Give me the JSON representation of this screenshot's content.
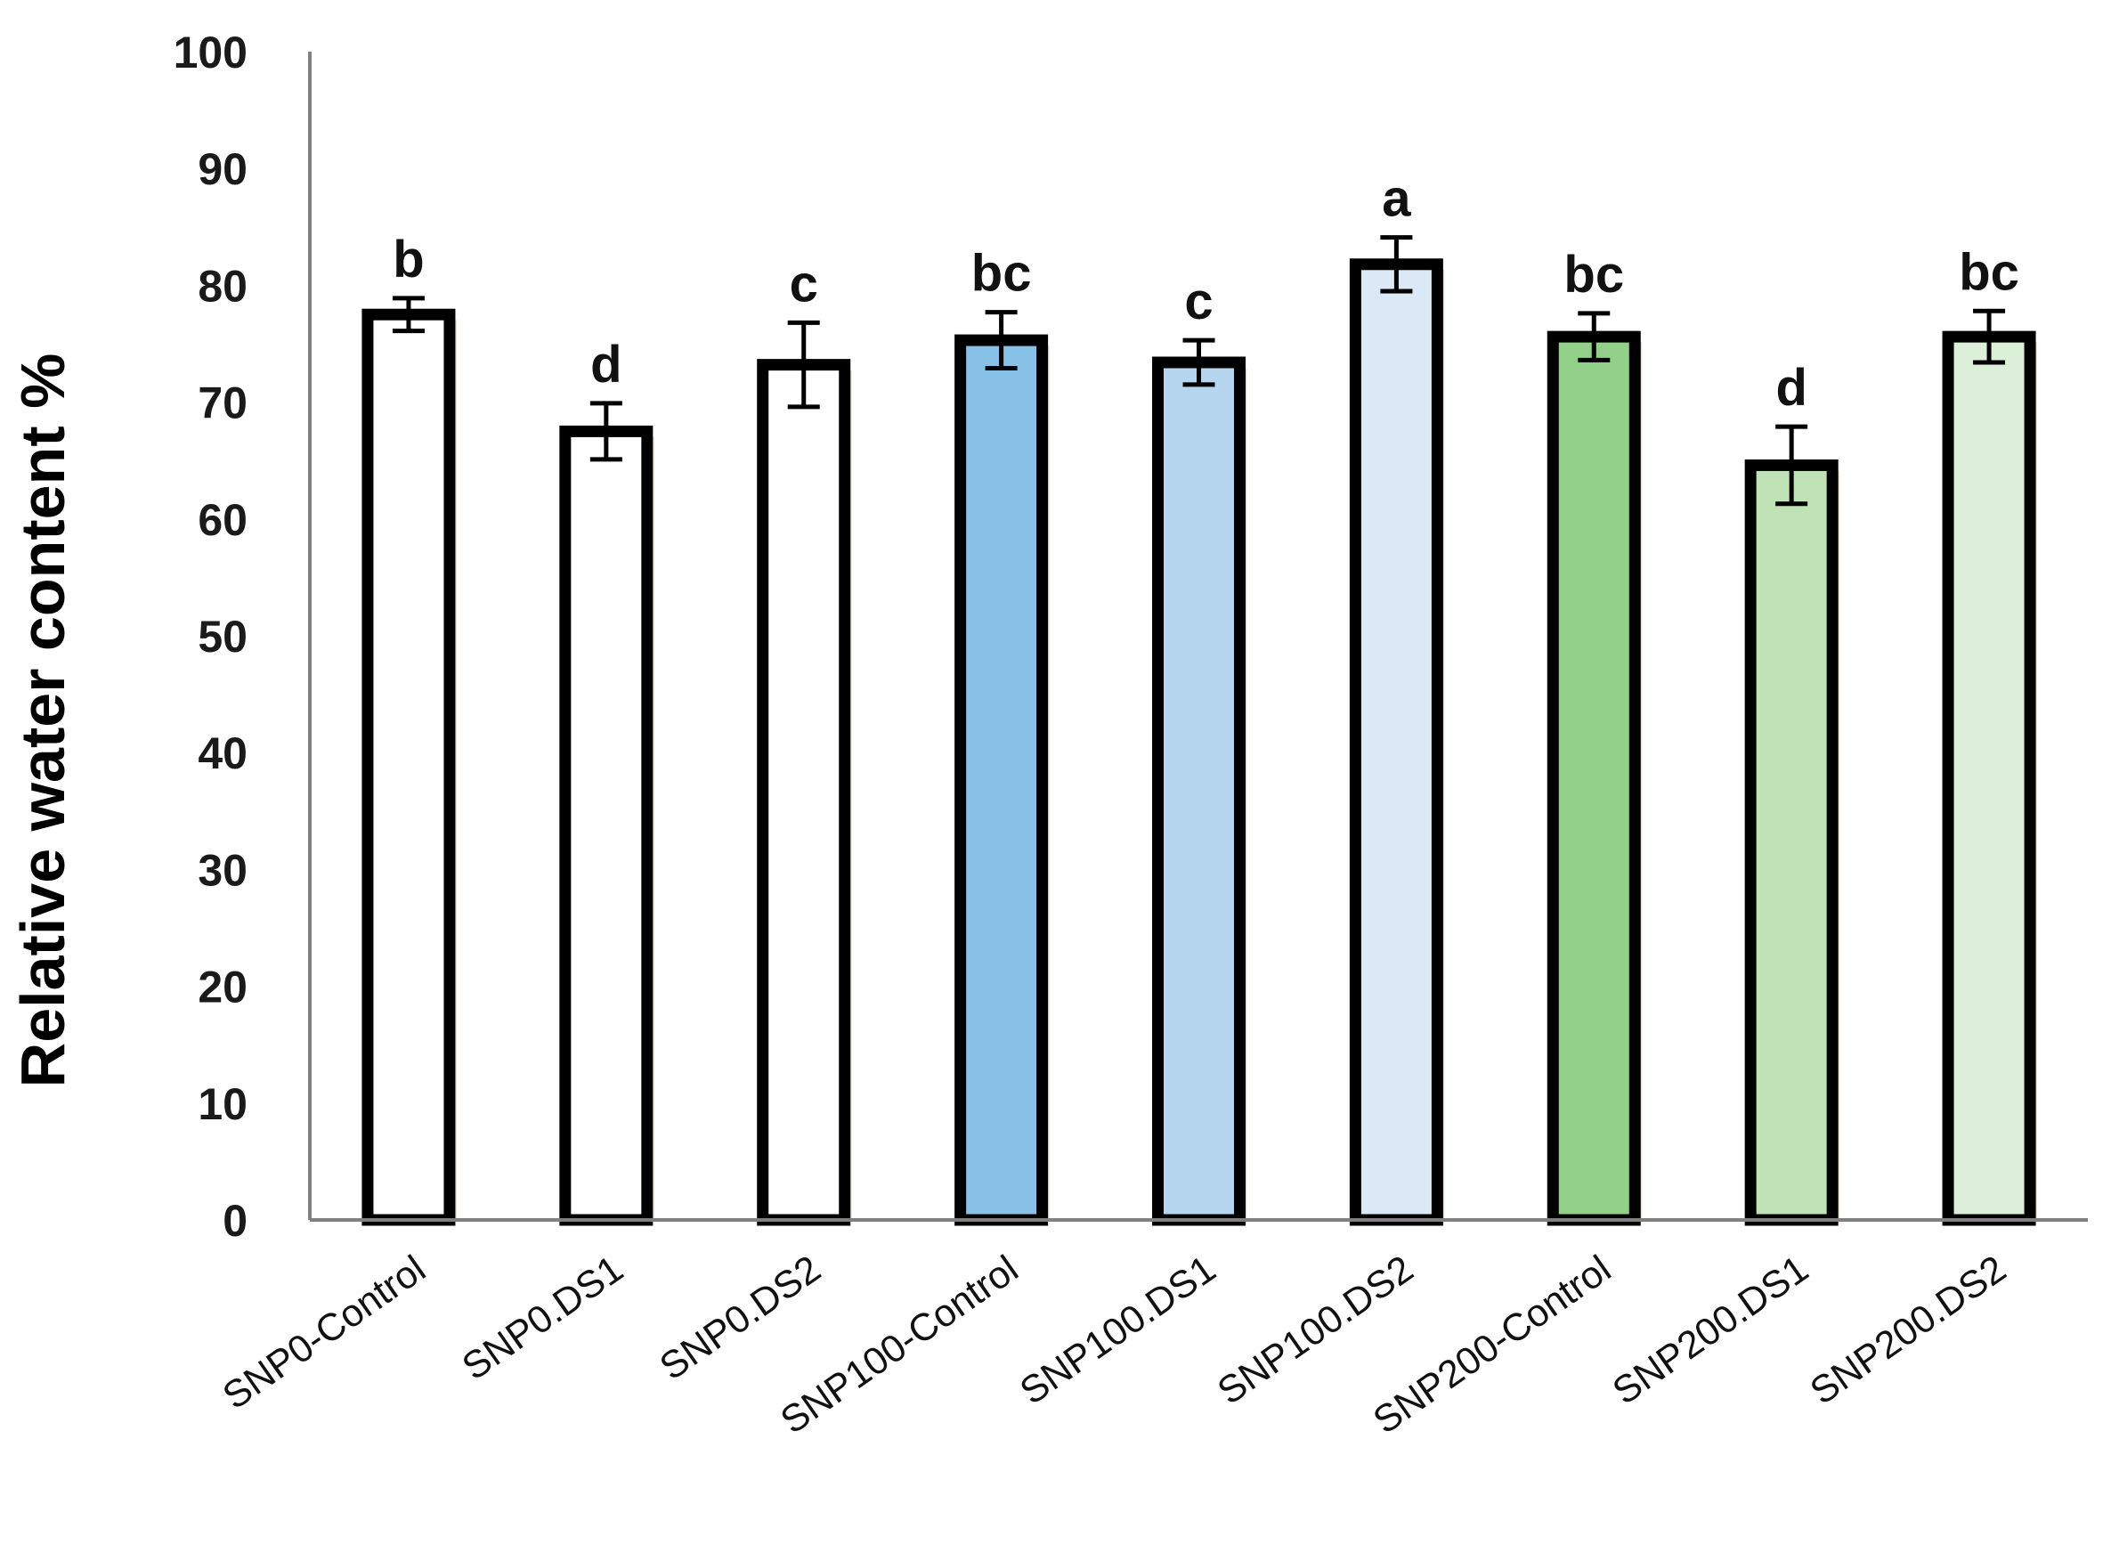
{
  "chart_data": {
    "type": "bar",
    "title": "",
    "xlabel": "",
    "ylabel": "Relative water content %",
    "ylim": [
      0,
      100
    ],
    "yticks": [
      0,
      10,
      20,
      30,
      40,
      50,
      60,
      70,
      80,
      90,
      100
    ],
    "grid": false,
    "categories": [
      "SNP0-Control",
      "SNP0.DS1",
      "SNP0.DS2",
      "SNP100-Control",
      "SNP100.DS1",
      "SNP100.DS2",
      "SNP200-Control",
      "SNP200.DS1",
      "SNP200.DS2"
    ],
    "values": [
      77.5,
      67.5,
      73.2,
      75.3,
      73.4,
      81.8,
      75.6,
      64.6,
      75.6
    ],
    "errors": [
      1.4,
      2.4,
      3.6,
      2.4,
      1.9,
      2.3,
      2.0,
      3.3,
      2.2
    ],
    "letters": [
      "b",
      "d",
      "c",
      "bc",
      "c",
      "a",
      "bc",
      "d",
      "bc"
    ],
    "colors": [
      "#ffffff",
      "#ffffff",
      "#ffffff",
      "#87c1e7",
      "#b5d6ee",
      "#dbe9f6",
      "#92d08a",
      "#bfe2b7",
      "#dcefd8"
    ]
  }
}
